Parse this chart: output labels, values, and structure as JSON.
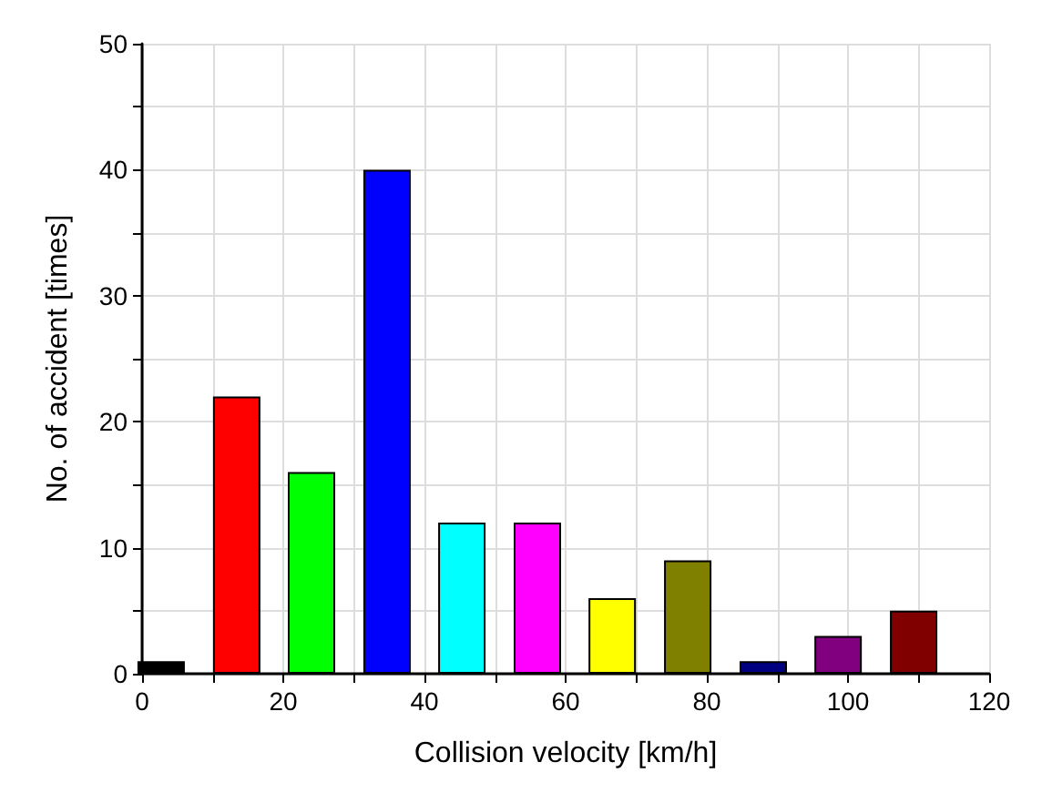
{
  "chart_data": {
    "type": "bar",
    "xlabel": "Collision velocity [km/h]",
    "ylabel": "No. of accident [times]",
    "x": [
      2.7,
      13.4,
      24,
      34.7,
      45.3,
      56,
      66.6,
      77.3,
      88,
      98.6,
      109.3
    ],
    "values": [
      1,
      22,
      16,
      40,
      12,
      12,
      6,
      9,
      1,
      3,
      5
    ],
    "colors": [
      "#000000",
      "#ff0000",
      "#00ff00",
      "#0000ff",
      "#00ffff",
      "#ff00ff",
      "#ffff00",
      "#808000",
      "#000080",
      "#800080",
      "#800000"
    ],
    "xlim": [
      0,
      120
    ],
    "xticks": [
      0,
      {
        "value": 10,
        "label": null
      },
      20,
      {
        "value": 30,
        "label": null
      },
      40,
      {
        "value": 50,
        "label": null
      },
      60,
      {
        "value": 70,
        "label": null
      },
      80,
      {
        "value": 90,
        "label": null
      },
      100,
      {
        "value": 110,
        "label": null
      },
      120
    ],
    "ylim": [
      0,
      50
    ],
    "yticks": [
      0,
      {
        "value": 5,
        "label": null
      },
      10,
      {
        "value": 15,
        "label": null
      },
      20,
      {
        "value": 25,
        "label": null
      },
      30,
      {
        "value": 35,
        "label": null
      },
      40,
      {
        "value": 45,
        "label": null
      },
      50
    ],
    "grid": true
  }
}
